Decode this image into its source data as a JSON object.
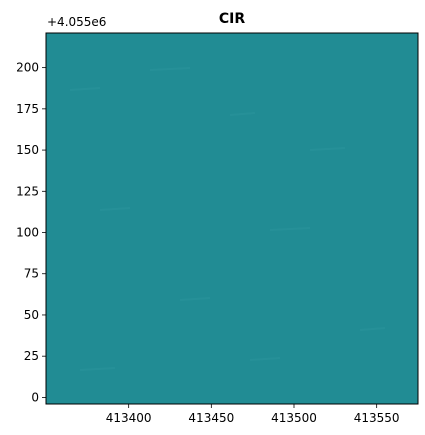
{
  "chart_data": {
    "type": "heatmap",
    "title": "CIR",
    "xlabel": "",
    "ylabel": "",
    "y_offset_label": "+4.055e6",
    "xlim": [
      413350,
      413575
    ],
    "ylim": [
      -4,
      221
    ],
    "x_ticks": [
      413400,
      413450,
      413500,
      413550
    ],
    "x_tick_labels": [
      "413400",
      "413450",
      "413500",
      "413550"
    ],
    "y_ticks": [
      0,
      25,
      50,
      75,
      100,
      125,
      150,
      175,
      200
    ],
    "y_tick_labels": [
      "0",
      "25",
      "50",
      "75",
      "100",
      "125",
      "150",
      "175",
      "200"
    ],
    "image_color": "#218c94",
    "texture_color": "#2a949b",
    "grid": false,
    "legend": "none"
  }
}
